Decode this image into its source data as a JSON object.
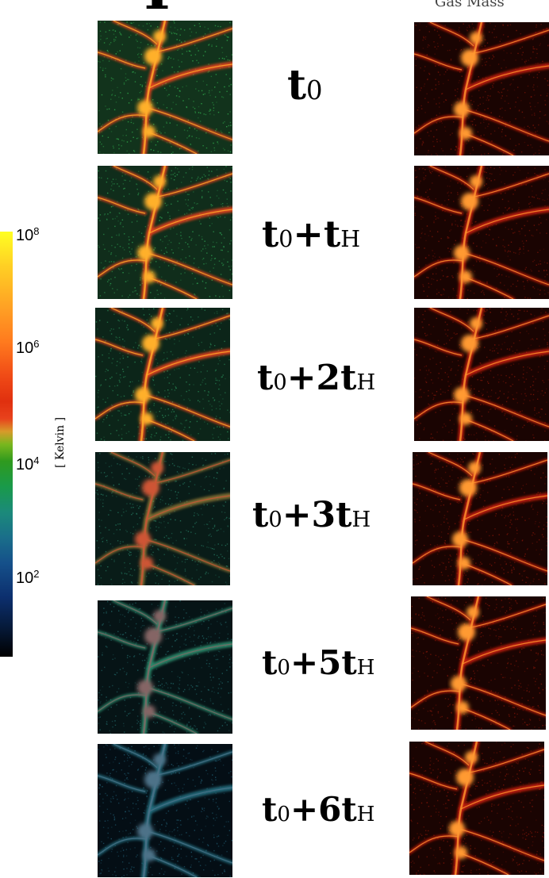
{
  "header": {
    "left_glyph": "T",
    "right_title": "Gas Mass"
  },
  "colorbar": {
    "unit": "[ Kelvin ]",
    "ticks": [
      {
        "base": "10",
        "exp": "8"
      },
      {
        "base": "10",
        "exp": "6"
      },
      {
        "base": "10",
        "exp": "4"
      },
      {
        "base": "10",
        "exp": "2"
      }
    ]
  },
  "rows": [
    {
      "time_main": "t",
      "time_sub": "0",
      "time_rest": ""
    },
    {
      "time_main": "t",
      "time_sub": "0",
      "time_rest": "+t",
      "time_sub2": "H"
    },
    {
      "time_main": "t",
      "time_sub": "0",
      "time_rest": "+2t",
      "time_sub2": "H"
    },
    {
      "time_main": "t",
      "time_sub": "0",
      "time_rest": "+3t",
      "time_sub2": "H"
    },
    {
      "time_main": "t",
      "time_sub": "0",
      "time_rest": "+5t",
      "time_sub2": "H"
    },
    {
      "time_main": "t",
      "time_sub": "0",
      "time_rest": "+6t",
      "time_sub2": "H"
    }
  ],
  "temperature_levels": [
    1.0,
    0.85,
    0.65,
    0.45,
    0.25,
    0.1
  ]
}
